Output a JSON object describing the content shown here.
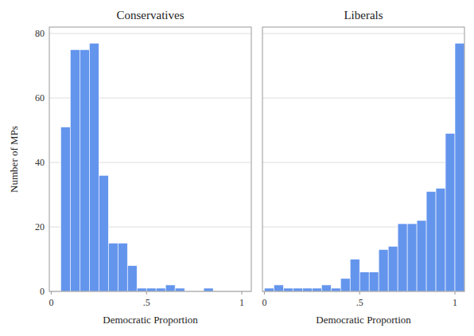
{
  "chart_data": [
    {
      "type": "histogram",
      "title": "Conservatives",
      "bins": [
        0.0,
        0.05,
        0.1,
        0.15,
        0.2,
        0.25,
        0.3,
        0.35,
        0.4,
        0.45,
        0.5,
        0.55,
        0.6,
        0.65,
        0.7,
        0.75,
        0.8,
        0.85,
        0.9,
        0.95,
        1.0
      ],
      "values": [
        0,
        51,
        75,
        75,
        77,
        36,
        15,
        15,
        8,
        1,
        1,
        1,
        2,
        1,
        0,
        0,
        1,
        0,
        0,
        0
      ],
      "color": "#6495ED",
      "xlabel": "Democratic Proportion",
      "ylabel": "Number of MPs",
      "xlim": [
        -0.01,
        1.05
      ],
      "xticks": [
        0,
        {
          "value": 0.5,
          "label": ".5"
        },
        1
      ],
      "ylim": [
        0,
        82
      ],
      "yticks": [
        0,
        20,
        40,
        60,
        80
      ],
      "grid": true
    },
    {
      "type": "histogram",
      "title": "Liberals",
      "bins": [
        0.0,
        0.05,
        0.1,
        0.15,
        0.2,
        0.25,
        0.3,
        0.35,
        0.4,
        0.45,
        0.5,
        0.55,
        0.6,
        0.65,
        0.7,
        0.75,
        0.8,
        0.85,
        0.9,
        0.95,
        1.0,
        1.05
      ],
      "values": [
        1,
        2,
        1,
        1,
        1,
        1,
        2,
        1,
        4,
        10,
        6,
        6,
        13,
        14,
        21,
        21,
        22,
        31,
        32,
        49,
        77
      ],
      "color": "#6495ED",
      "xlabel": "Democratic Proportion",
      "xlim": [
        -0.01,
        1.05
      ],
      "xticks": [
        0,
        {
          "value": 0.5,
          "label": ".5"
        },
        1
      ],
      "ylim": [
        0,
        82
      ],
      "yticks": [
        0,
        20,
        40,
        60,
        80
      ],
      "grid": true,
      "tick_labels": "x"
    }
  ]
}
